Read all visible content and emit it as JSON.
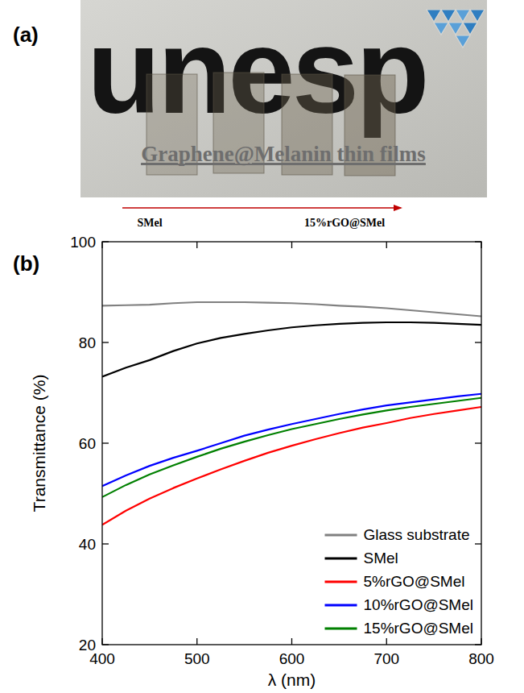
{
  "photo": {
    "panel_label": "(a)",
    "logo_text": "unesp",
    "caption": "Graphene@Melanin thin films",
    "arrow_start": "SMel",
    "arrow_end": "15%rGO@SMel"
  },
  "chart_data": {
    "type": "line",
    "panel_label": "(b)",
    "x_label": "λ (nm)",
    "y_label": "Transmittance (%)",
    "x": [
      400,
      425,
      450,
      475,
      500,
      525,
      550,
      575,
      600,
      625,
      650,
      675,
      700,
      725,
      750,
      775,
      800
    ],
    "series": [
      {
        "name": "Glass substrate",
        "color": "#808080",
        "values": [
          87.3,
          87.4,
          87.5,
          87.8,
          88.0,
          88.0,
          88.0,
          87.9,
          87.8,
          87.6,
          87.3,
          87.1,
          86.8,
          86.4,
          86.0,
          85.6,
          85.2
        ]
      },
      {
        "name": "SMel",
        "color": "#000000",
        "values": [
          73.2,
          75.0,
          76.5,
          78.3,
          79.8,
          80.9,
          81.7,
          82.4,
          83.0,
          83.4,
          83.7,
          83.9,
          84.0,
          84.0,
          83.9,
          83.7,
          83.5
        ]
      },
      {
        "name": "5%rGO@SMel",
        "color": "#ff0000",
        "values": [
          43.8,
          46.6,
          49.0,
          51.1,
          53.0,
          54.8,
          56.5,
          58.1,
          59.5,
          60.8,
          62.0,
          63.1,
          64.0,
          65.0,
          65.8,
          66.5,
          67.2
        ]
      },
      {
        "name": "10%rGO@SMel",
        "color": "#0000ff",
        "values": [
          51.5,
          53.6,
          55.5,
          57.1,
          58.5,
          60.0,
          61.5,
          62.7,
          63.8,
          64.8,
          65.8,
          66.7,
          67.5,
          68.1,
          68.7,
          69.3,
          69.8
        ]
      },
      {
        "name": "15%rGO@SMel",
        "color": "#008000",
        "values": [
          49.3,
          51.7,
          53.8,
          55.6,
          57.3,
          58.9,
          60.3,
          61.6,
          62.8,
          63.8,
          64.8,
          65.7,
          66.5,
          67.2,
          67.8,
          68.4,
          69.0
        ]
      }
    ],
    "xlim": [
      400,
      800
    ],
    "xticks": [
      400,
      500,
      600,
      700,
      800
    ],
    "ylim": [
      20,
      100
    ],
    "yticks": [
      20,
      40,
      60,
      80,
      100
    ],
    "legend": "lower right",
    "grid": false
  }
}
